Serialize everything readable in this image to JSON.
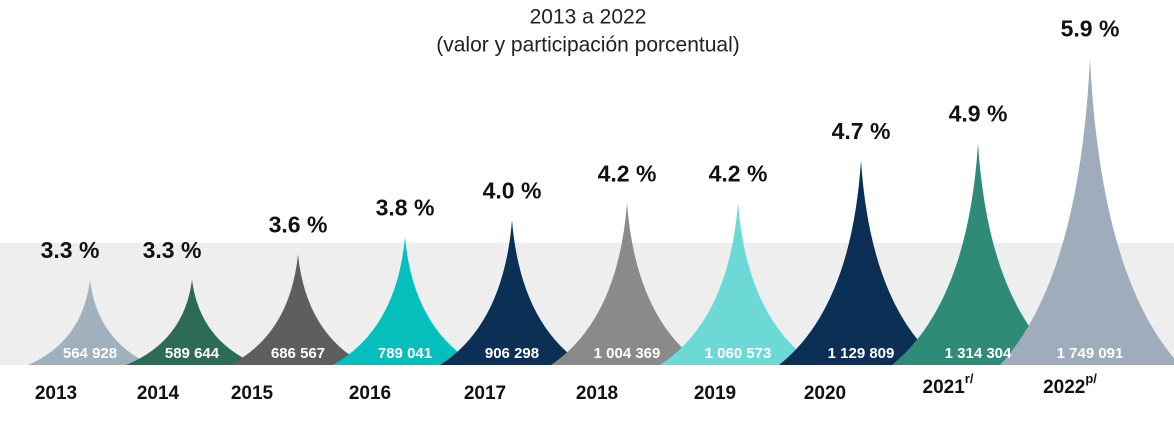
{
  "chart_data": {
    "type": "spike",
    "title": "2013 a 2022",
    "subtitle": "(valor y participación porcentual)",
    "categories": [
      "2013",
      "2014",
      "2015",
      "2016",
      "2017",
      "2018",
      "2019",
      "2020",
      "2021",
      "2022"
    ],
    "category_superscripts": [
      null,
      null,
      null,
      null,
      null,
      null,
      null,
      null,
      "r/",
      "p/"
    ],
    "values": [
      3.3,
      3.3,
      3.6,
      3.8,
      4.0,
      4.2,
      4.2,
      4.7,
      4.9,
      5.9
    ],
    "value_labels": [
      "3.3 %",
      "3.3 %",
      "3.6 %",
      "3.8 %",
      "4.0 %",
      "4.2 %",
      "4.2 %",
      "4.7 %",
      "4.9 %",
      "5.9 %"
    ],
    "amounts": [
      564928,
      589644,
      686567,
      789041,
      906298,
      1004369,
      1060573,
      1129809,
      1314304,
      1749091
    ],
    "amount_labels": [
      "564 928",
      "589 644",
      "686 567",
      "789 041",
      "906 298",
      "1 004 369",
      "1 060 573",
      "1 129 809",
      "1 314 304",
      "1 749 091"
    ],
    "colors": [
      "#a0b1bd",
      "#2e6a58",
      "#5e5e5e",
      "#06bfbc",
      "#0c2f55",
      "#8a8a8a",
      "#6dd9d7",
      "#0c2f55",
      "#2f8a78",
      "#9eacbb"
    ],
    "ylim": [
      2.3,
      6.0
    ]
  }
}
